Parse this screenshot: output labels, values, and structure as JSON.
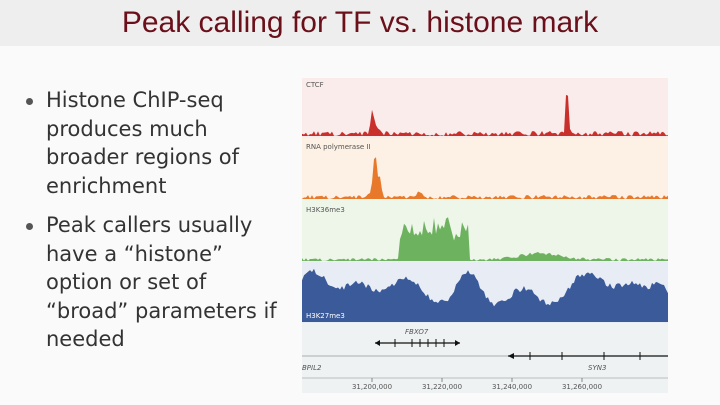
{
  "header": {
    "title": "Peak calling for TF vs. histone mark"
  },
  "bullets": [
    "Histone ChIP-seq produces much broader regions of enrichment",
    "Peak callers usually have a “histone” option or set of “broad” parameters if needed"
  ],
  "figure": {
    "tracks": [
      "CTCF",
      "RNA polymerase II",
      "H3K36me3",
      "H3K27me3"
    ],
    "genes": [
      "FBXO7",
      "BPIL2",
      "SYN3"
    ],
    "coordinates": [
      "31,200,000",
      "31,220,000",
      "31,240,000",
      "31,260,000"
    ]
  }
}
